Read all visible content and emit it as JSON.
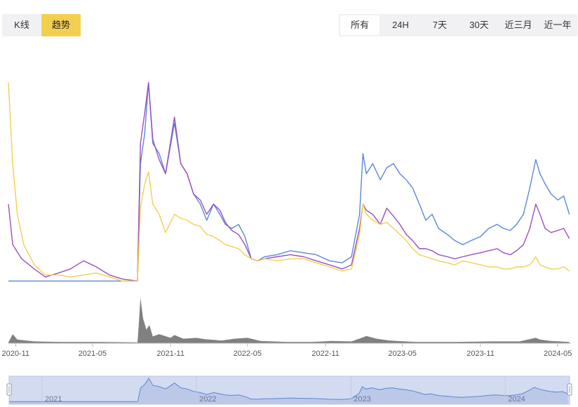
{
  "view_toggle": [
    {
      "label": "K线",
      "active": false
    },
    {
      "label": "趋势",
      "active": true
    }
  ],
  "range_buttons": [
    {
      "label": "所有",
      "active": true
    },
    {
      "label": "24H",
      "active": false
    },
    {
      "label": "7天",
      "active": false
    },
    {
      "label": "30天",
      "active": false
    },
    {
      "label": "近三月",
      "active": false
    },
    {
      "label": "近一年",
      "active": false
    }
  ],
  "colors": {
    "blue": "#5b87d6",
    "purple": "#9b4fbf",
    "yellow": "#f3cf4f",
    "volume": "#808080",
    "accent": "#f3cf4f"
  },
  "chart_data": {
    "type": "line",
    "x_ticks": [
      "2020-11",
      "2021-05",
      "2021-11",
      "2022-05",
      "2022-11",
      "2023-05",
      "2023-11",
      "2024-05"
    ],
    "x_range": [
      "2020-10-15",
      "2024-06-01"
    ],
    "y_scale": "normalized",
    "grid": false,
    "legend": "none",
    "series": [
      {
        "color": "#5b87d6",
        "points": [
          [
            "2020-10-15",
            2
          ],
          [
            "2021-08-15",
            2
          ],
          [
            "2021-08-22",
            60
          ],
          [
            "2021-09-01",
            75
          ],
          [
            "2021-09-10",
            100
          ],
          [
            "2021-09-20",
            70
          ],
          [
            "2021-10-05",
            65
          ],
          [
            "2021-10-20",
            55
          ],
          [
            "2021-11-10",
            80
          ],
          [
            "2021-11-25",
            60
          ],
          [
            "2021-12-10",
            55
          ],
          [
            "2021-12-25",
            45
          ],
          [
            "2022-01-10",
            40
          ],
          [
            "2022-01-25",
            32
          ],
          [
            "2022-02-10",
            40
          ],
          [
            "2022-02-25",
            35
          ],
          [
            "2022-03-10",
            30
          ],
          [
            "2022-03-25",
            28
          ],
          [
            "2022-04-10",
            30
          ],
          [
            "2022-04-25",
            24
          ],
          [
            "2022-05-10",
            13
          ],
          [
            "2022-05-25",
            12
          ],
          [
            "2022-06-10",
            14
          ],
          [
            "2022-07-10",
            15
          ],
          [
            "2022-08-10",
            17
          ],
          [
            "2022-09-10",
            16
          ],
          [
            "2022-10-10",
            15
          ],
          [
            "2022-11-10",
            12
          ],
          [
            "2022-12-10",
            11
          ],
          [
            "2023-01-01",
            14
          ],
          [
            "2023-01-20",
            35
          ],
          [
            "2023-01-28",
            65
          ],
          [
            "2023-02-05",
            55
          ],
          [
            "2023-02-20",
            60
          ],
          [
            "2023-03-10",
            52
          ],
          [
            "2023-03-25",
            58
          ],
          [
            "2023-04-10",
            60
          ],
          [
            "2023-04-25",
            55
          ],
          [
            "2023-05-10",
            52
          ],
          [
            "2023-05-25",
            48
          ],
          [
            "2023-06-10",
            40
          ],
          [
            "2023-06-25",
            32
          ],
          [
            "2023-07-10",
            35
          ],
          [
            "2023-07-25",
            28
          ],
          [
            "2023-08-15",
            25
          ],
          [
            "2023-09-01",
            22
          ],
          [
            "2023-09-20",
            20
          ],
          [
            "2023-10-10",
            22
          ],
          [
            "2023-11-01",
            24
          ],
          [
            "2023-11-20",
            28
          ],
          [
            "2023-12-10",
            30
          ],
          [
            "2023-12-25",
            28
          ],
          [
            "2024-01-10",
            27
          ],
          [
            "2024-01-25",
            30
          ],
          [
            "2024-02-10",
            35
          ],
          [
            "2024-02-25",
            48
          ],
          [
            "2024-03-10",
            62
          ],
          [
            "2024-03-20",
            55
          ],
          [
            "2024-04-01",
            50
          ],
          [
            "2024-04-15",
            45
          ],
          [
            "2024-05-01",
            42
          ],
          [
            "2024-05-15",
            44
          ],
          [
            "2024-05-28",
            35
          ]
        ]
      },
      {
        "color": "#9b4fbf",
        "points": [
          [
            "2020-10-15",
            40
          ],
          [
            "2020-10-25",
            20
          ],
          [
            "2020-11-15",
            13
          ],
          [
            "2020-12-15",
            8
          ],
          [
            "2021-01-10",
            4
          ],
          [
            "2021-02-10",
            6
          ],
          [
            "2021-03-10",
            8
          ],
          [
            "2021-04-10",
            12
          ],
          [
            "2021-05-10",
            9
          ],
          [
            "2021-06-10",
            5
          ],
          [
            "2021-07-10",
            3
          ],
          [
            "2021-08-15",
            2
          ],
          [
            "2021-08-22",
            70
          ],
          [
            "2021-09-01",
            85
          ],
          [
            "2021-09-10",
            100
          ],
          [
            "2021-09-20",
            72
          ],
          [
            "2021-10-05",
            62
          ],
          [
            "2021-10-20",
            55
          ],
          [
            "2021-11-10",
            83
          ],
          [
            "2021-11-25",
            60
          ],
          [
            "2021-12-10",
            55
          ],
          [
            "2021-12-25",
            45
          ],
          [
            "2022-01-10",
            42
          ],
          [
            "2022-01-25",
            35
          ],
          [
            "2022-02-10",
            40
          ],
          [
            "2022-02-25",
            37
          ],
          [
            "2022-03-10",
            31
          ],
          [
            "2022-03-25",
            27
          ],
          [
            "2022-04-10",
            25
          ],
          [
            "2022-04-25",
            20
          ],
          [
            "2022-05-10",
            13
          ],
          [
            "2022-05-25",
            12
          ],
          [
            "2022-06-10",
            13
          ],
          [
            "2022-07-10",
            14
          ],
          [
            "2022-08-10",
            15
          ],
          [
            "2022-09-10",
            14
          ],
          [
            "2022-10-10",
            12
          ],
          [
            "2022-11-10",
            10
          ],
          [
            "2022-12-10",
            8
          ],
          [
            "2023-01-01",
            10
          ],
          [
            "2023-01-20",
            28
          ],
          [
            "2023-01-28",
            40
          ],
          [
            "2023-02-05",
            37
          ],
          [
            "2023-02-20",
            35
          ],
          [
            "2023-03-10",
            30
          ],
          [
            "2023-03-25",
            38
          ],
          [
            "2023-04-10",
            34
          ],
          [
            "2023-04-25",
            30
          ],
          [
            "2023-05-10",
            25
          ],
          [
            "2023-05-25",
            22
          ],
          [
            "2023-06-10",
            18
          ],
          [
            "2023-06-25",
            18
          ],
          [
            "2023-07-10",
            17
          ],
          [
            "2023-07-25",
            15
          ],
          [
            "2023-08-15",
            14
          ],
          [
            "2023-09-01",
            13
          ],
          [
            "2023-09-20",
            14
          ],
          [
            "2023-10-10",
            15
          ],
          [
            "2023-11-01",
            16
          ],
          [
            "2023-11-20",
            17
          ],
          [
            "2023-12-10",
            18
          ],
          [
            "2023-12-25",
            16
          ],
          [
            "2024-01-10",
            15
          ],
          [
            "2024-01-25",
            17
          ],
          [
            "2024-02-10",
            20
          ],
          [
            "2024-02-25",
            28
          ],
          [
            "2024-03-10",
            40
          ],
          [
            "2024-03-20",
            35
          ],
          [
            "2024-04-01",
            28
          ],
          [
            "2024-04-15",
            26
          ],
          [
            "2024-05-01",
            27
          ],
          [
            "2024-05-15",
            28
          ],
          [
            "2024-05-28",
            23
          ]
        ]
      },
      {
        "color": "#f3cf4f",
        "points": [
          [
            "2020-10-15",
            100
          ],
          [
            "2020-10-25",
            60
          ],
          [
            "2020-11-05",
            35
          ],
          [
            "2020-11-20",
            20
          ],
          [
            "2020-12-15",
            10
          ],
          [
            "2021-01-10",
            5
          ],
          [
            "2021-02-10",
            5
          ],
          [
            "2021-03-10",
            4
          ],
          [
            "2021-04-10",
            5
          ],
          [
            "2021-05-10",
            6
          ],
          [
            "2021-06-10",
            4
          ],
          [
            "2021-07-10",
            2
          ],
          [
            "2021-08-15",
            2
          ],
          [
            "2021-08-22",
            38
          ],
          [
            "2021-09-01",
            50
          ],
          [
            "2021-09-10",
            56
          ],
          [
            "2021-09-20",
            40
          ],
          [
            "2021-10-05",
            35
          ],
          [
            "2021-10-20",
            26
          ],
          [
            "2021-11-10",
            35
          ],
          [
            "2021-11-25",
            33
          ],
          [
            "2021-12-10",
            32
          ],
          [
            "2021-12-25",
            30
          ],
          [
            "2022-01-10",
            29
          ],
          [
            "2022-01-25",
            25
          ],
          [
            "2022-02-10",
            24
          ],
          [
            "2022-02-25",
            22
          ],
          [
            "2022-03-10",
            20
          ],
          [
            "2022-03-25",
            19
          ],
          [
            "2022-04-10",
            18
          ],
          [
            "2022-04-25",
            15
          ],
          [
            "2022-05-10",
            13
          ],
          [
            "2022-05-25",
            12
          ],
          [
            "2022-06-10",
            13
          ],
          [
            "2022-07-10",
            12
          ],
          [
            "2022-08-10",
            13
          ],
          [
            "2022-09-10",
            13
          ],
          [
            "2022-10-10",
            11
          ],
          [
            "2022-11-10",
            9
          ],
          [
            "2022-12-10",
            7
          ],
          [
            "2023-01-01",
            8
          ],
          [
            "2023-01-20",
            25
          ],
          [
            "2023-01-28",
            40
          ],
          [
            "2023-02-05",
            35
          ],
          [
            "2023-02-20",
            32
          ],
          [
            "2023-03-10",
            30
          ],
          [
            "2023-03-25",
            31
          ],
          [
            "2023-04-10",
            28
          ],
          [
            "2023-04-25",
            25
          ],
          [
            "2023-05-10",
            22
          ],
          [
            "2023-05-25",
            18
          ],
          [
            "2023-06-10",
            15
          ],
          [
            "2023-06-25",
            14
          ],
          [
            "2023-07-10",
            13
          ],
          [
            "2023-07-25",
            12
          ],
          [
            "2023-08-15",
            11
          ],
          [
            "2023-09-01",
            10
          ],
          [
            "2023-09-20",
            12
          ],
          [
            "2023-10-10",
            11
          ],
          [
            "2023-11-01",
            10
          ],
          [
            "2023-11-20",
            9
          ],
          [
            "2023-12-10",
            9
          ],
          [
            "2023-12-25",
            8
          ],
          [
            "2024-01-10",
            8
          ],
          [
            "2024-01-25",
            9
          ],
          [
            "2024-02-10",
            9
          ],
          [
            "2024-02-25",
            10
          ],
          [
            "2024-03-10",
            14
          ],
          [
            "2024-03-20",
            10
          ],
          [
            "2024-04-01",
            9
          ],
          [
            "2024-04-15",
            8
          ],
          [
            "2024-05-01",
            8
          ],
          [
            "2024-05-15",
            9
          ],
          [
            "2024-05-28",
            7
          ]
        ]
      }
    ],
    "volume": {
      "color": "#808080",
      "points": [
        [
          "2020-10-15",
          2
        ],
        [
          "2020-10-25",
          20
        ],
        [
          "2020-11-05",
          8
        ],
        [
          "2020-12-15",
          4
        ],
        [
          "2021-02-15",
          3
        ],
        [
          "2021-05-15",
          3
        ],
        [
          "2021-08-15",
          2
        ],
        [
          "2021-08-18",
          40
        ],
        [
          "2021-08-22",
          100
        ],
        [
          "2021-08-28",
          55
        ],
        [
          "2021-09-05",
          30
        ],
        [
          "2021-09-12",
          40
        ],
        [
          "2021-09-20",
          15
        ],
        [
          "2021-10-05",
          20
        ],
        [
          "2021-11-01",
          12
        ],
        [
          "2021-11-10",
          18
        ],
        [
          "2021-12-01",
          10
        ],
        [
          "2022-01-01",
          12
        ],
        [
          "2022-01-20",
          9
        ],
        [
          "2022-03-01",
          6
        ],
        [
          "2022-04-01",
          10
        ],
        [
          "2022-05-01",
          12
        ],
        [
          "2022-06-01",
          5
        ],
        [
          "2022-08-01",
          3
        ],
        [
          "2022-10-01",
          3
        ],
        [
          "2022-11-15",
          5
        ],
        [
          "2023-01-01",
          4
        ],
        [
          "2023-01-25",
          12
        ],
        [
          "2023-02-05",
          16
        ],
        [
          "2023-03-01",
          10
        ],
        [
          "2023-04-01",
          6
        ],
        [
          "2023-06-01",
          3
        ],
        [
          "2023-09-01",
          3
        ],
        [
          "2023-12-01",
          4
        ],
        [
          "2024-02-01",
          4
        ],
        [
          "2024-03-10",
          12
        ],
        [
          "2024-03-20",
          8
        ],
        [
          "2024-04-15",
          5
        ],
        [
          "2024-05-28",
          3
        ]
      ]
    },
    "navigator": {
      "labels": [
        "2021",
        "2022",
        "2023",
        "2024"
      ]
    }
  }
}
